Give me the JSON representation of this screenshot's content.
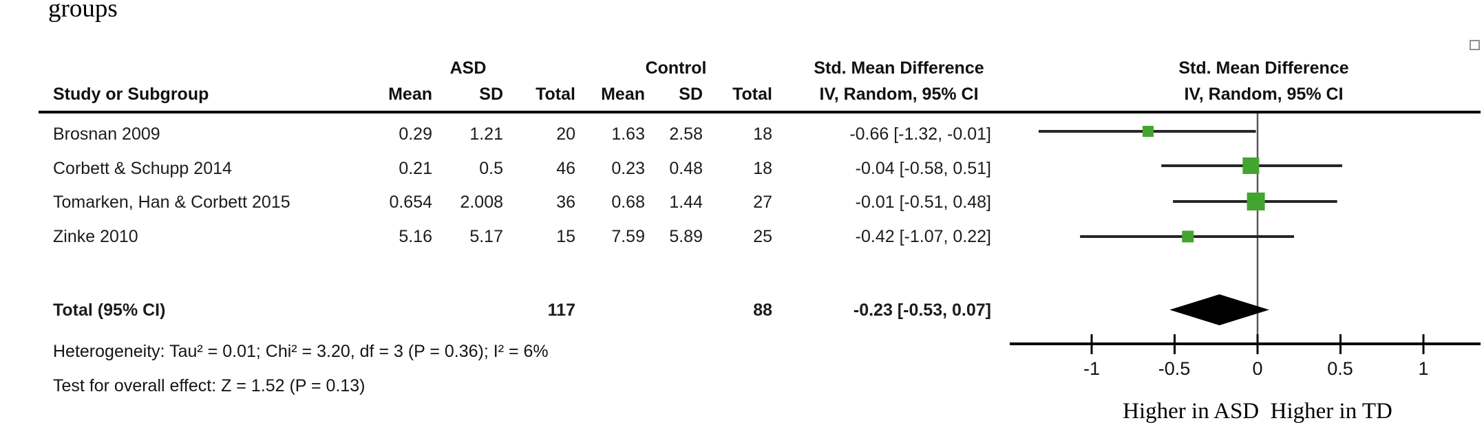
{
  "caption_fragment": "groups",
  "header": {
    "study_col": "Study or Subgroup",
    "group1": "ASD",
    "group2": "Control",
    "smd_left": "Std. Mean Difference",
    "smd_right": "Std. Mean Difference",
    "sub_left": "IV, Random, 95% CI",
    "sub_right": "IV, Random, 95% CI",
    "cols": [
      "Mean",
      "SD",
      "Total",
      "Mean",
      "SD",
      "Total"
    ]
  },
  "table": {
    "rows": [
      {
        "study": "Brosnan 2009",
        "mean1": "0.29",
        "sd1": "1.21",
        "total1": "20",
        "mean2": "1.63",
        "sd2": "2.58",
        "total2": "18",
        "ci": "-0.66 [-1.32, -0.01]"
      },
      {
        "study": "Corbett & Schupp 2014",
        "mean1": "0.21",
        "sd1": "0.5",
        "total1": "46",
        "mean2": "0.23",
        "sd2": "0.48",
        "total2": "18",
        "ci": "-0.04 [-0.58, 0.51]"
      },
      {
        "study": "Tomarken, Han & Corbett 2015",
        "mean1": "0.654",
        "sd1": "2.008",
        "total1": "36",
        "mean2": "0.68",
        "sd2": "1.44",
        "total2": "27",
        "ci": "-0.01 [-0.51, 0.48]"
      },
      {
        "study": "Zinke 2010",
        "mean1": "5.16",
        "sd1": "5.17",
        "total1": "15",
        "mean2": "7.59",
        "sd2": "5.89",
        "total2": "25",
        "ci": "-0.42 [-1.07, 0.22]"
      }
    ],
    "total_row": {
      "label": "Total (95% CI)",
      "total1": "117",
      "total2": "88",
      "ci": "-0.23 [-0.53, 0.07]"
    }
  },
  "footer": {
    "heterogeneity": "Heterogeneity: Tau² = 0.01; Chi² = 3.20, df = 3 (P = 0.36); I² = 6%",
    "overall": "Test for overall effect: Z = 1.52 (P = 0.13)"
  },
  "axis": {
    "tick_labels": [
      "-1",
      "-0.5",
      "0",
      "0.5",
      "1"
    ],
    "direction_label": "Higher in ASD  Higher in TD"
  },
  "chart_data": {
    "type": "forest",
    "title": "Std. Mean Difference",
    "model": "IV, Random, 95% CI",
    "x_ticks": [
      -1,
      -0.5,
      0,
      0.5,
      1
    ],
    "xlim": [
      -1.49,
      1.34
    ],
    "studies": [
      {
        "name": "Brosnan 2009",
        "est": -0.66,
        "lo": -1.32,
        "hi": -0.01
      },
      {
        "name": "Corbett & Schupp 2014",
        "est": -0.04,
        "lo": -0.58,
        "hi": 0.51
      },
      {
        "name": "Tomarken, Han & Corbett 2015",
        "est": -0.01,
        "lo": -0.51,
        "hi": 0.48
      },
      {
        "name": "Zinke 2010",
        "est": -0.42,
        "lo": -1.07,
        "hi": 0.22
      }
    ],
    "total": {
      "est": -0.23,
      "lo": -0.53,
      "hi": 0.07
    },
    "marker_color": "#41a530",
    "ci_color": "#262626",
    "diamond_color": "#000000",
    "zero_line_color": "#595959",
    "left_direction": "Higher in ASD",
    "right_direction": "Higher in TD"
  }
}
